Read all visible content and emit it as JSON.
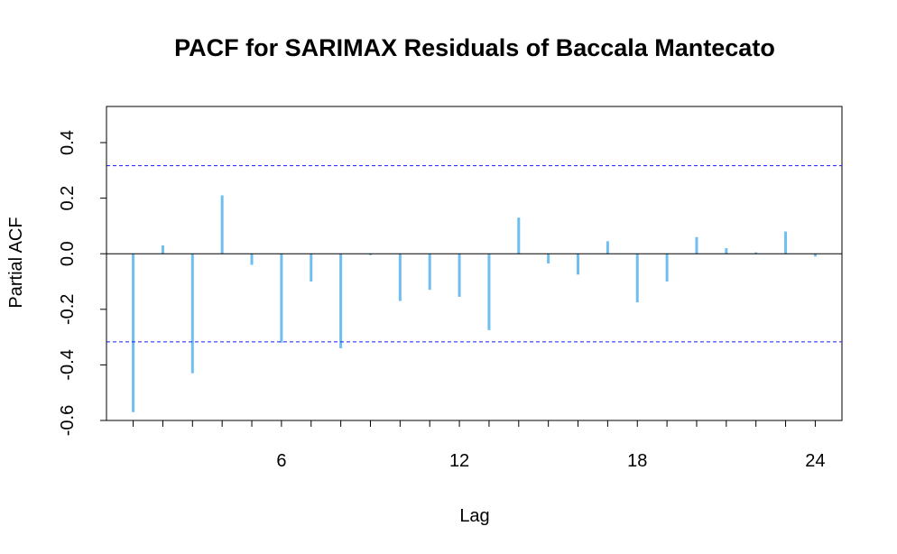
{
  "chart_data": {
    "type": "bar",
    "title": "PACF for SARIMAX Residuals of Baccala Mantecato",
    "xlabel": "Lag",
    "ylabel": "Partial ACF",
    "x_ticks": [
      6,
      12,
      18,
      24
    ],
    "y_ticks": [
      "-0.6",
      "-0.4",
      "-0.2",
      "0.0",
      "0.2",
      "0.4"
    ],
    "xlim": [
      0.1,
      24.9
    ],
    "ylim": [
      -0.6,
      0.53
    ],
    "conf_limit": 0.317,
    "series": [
      {
        "lags": [
          1,
          2,
          3,
          4,
          5,
          6,
          7,
          8,
          9,
          10,
          11,
          12,
          13,
          14,
          15,
          16,
          17,
          18,
          19,
          20,
          21,
          22,
          23,
          24
        ],
        "values": [
          -0.57,
          0.03,
          -0.43,
          0.21,
          -0.04,
          -0.32,
          -0.1,
          -0.34,
          -0.005,
          -0.17,
          -0.13,
          -0.155,
          -0.275,
          0.13,
          -0.035,
          -0.075,
          0.045,
          -0.175,
          -0.1,
          0.06,
          0.02,
          0.005,
          0.08,
          -0.01
        ]
      }
    ],
    "bar_color": "#6ebef0",
    "conf_line_color": "#1a1aff",
    "grid": false
  }
}
